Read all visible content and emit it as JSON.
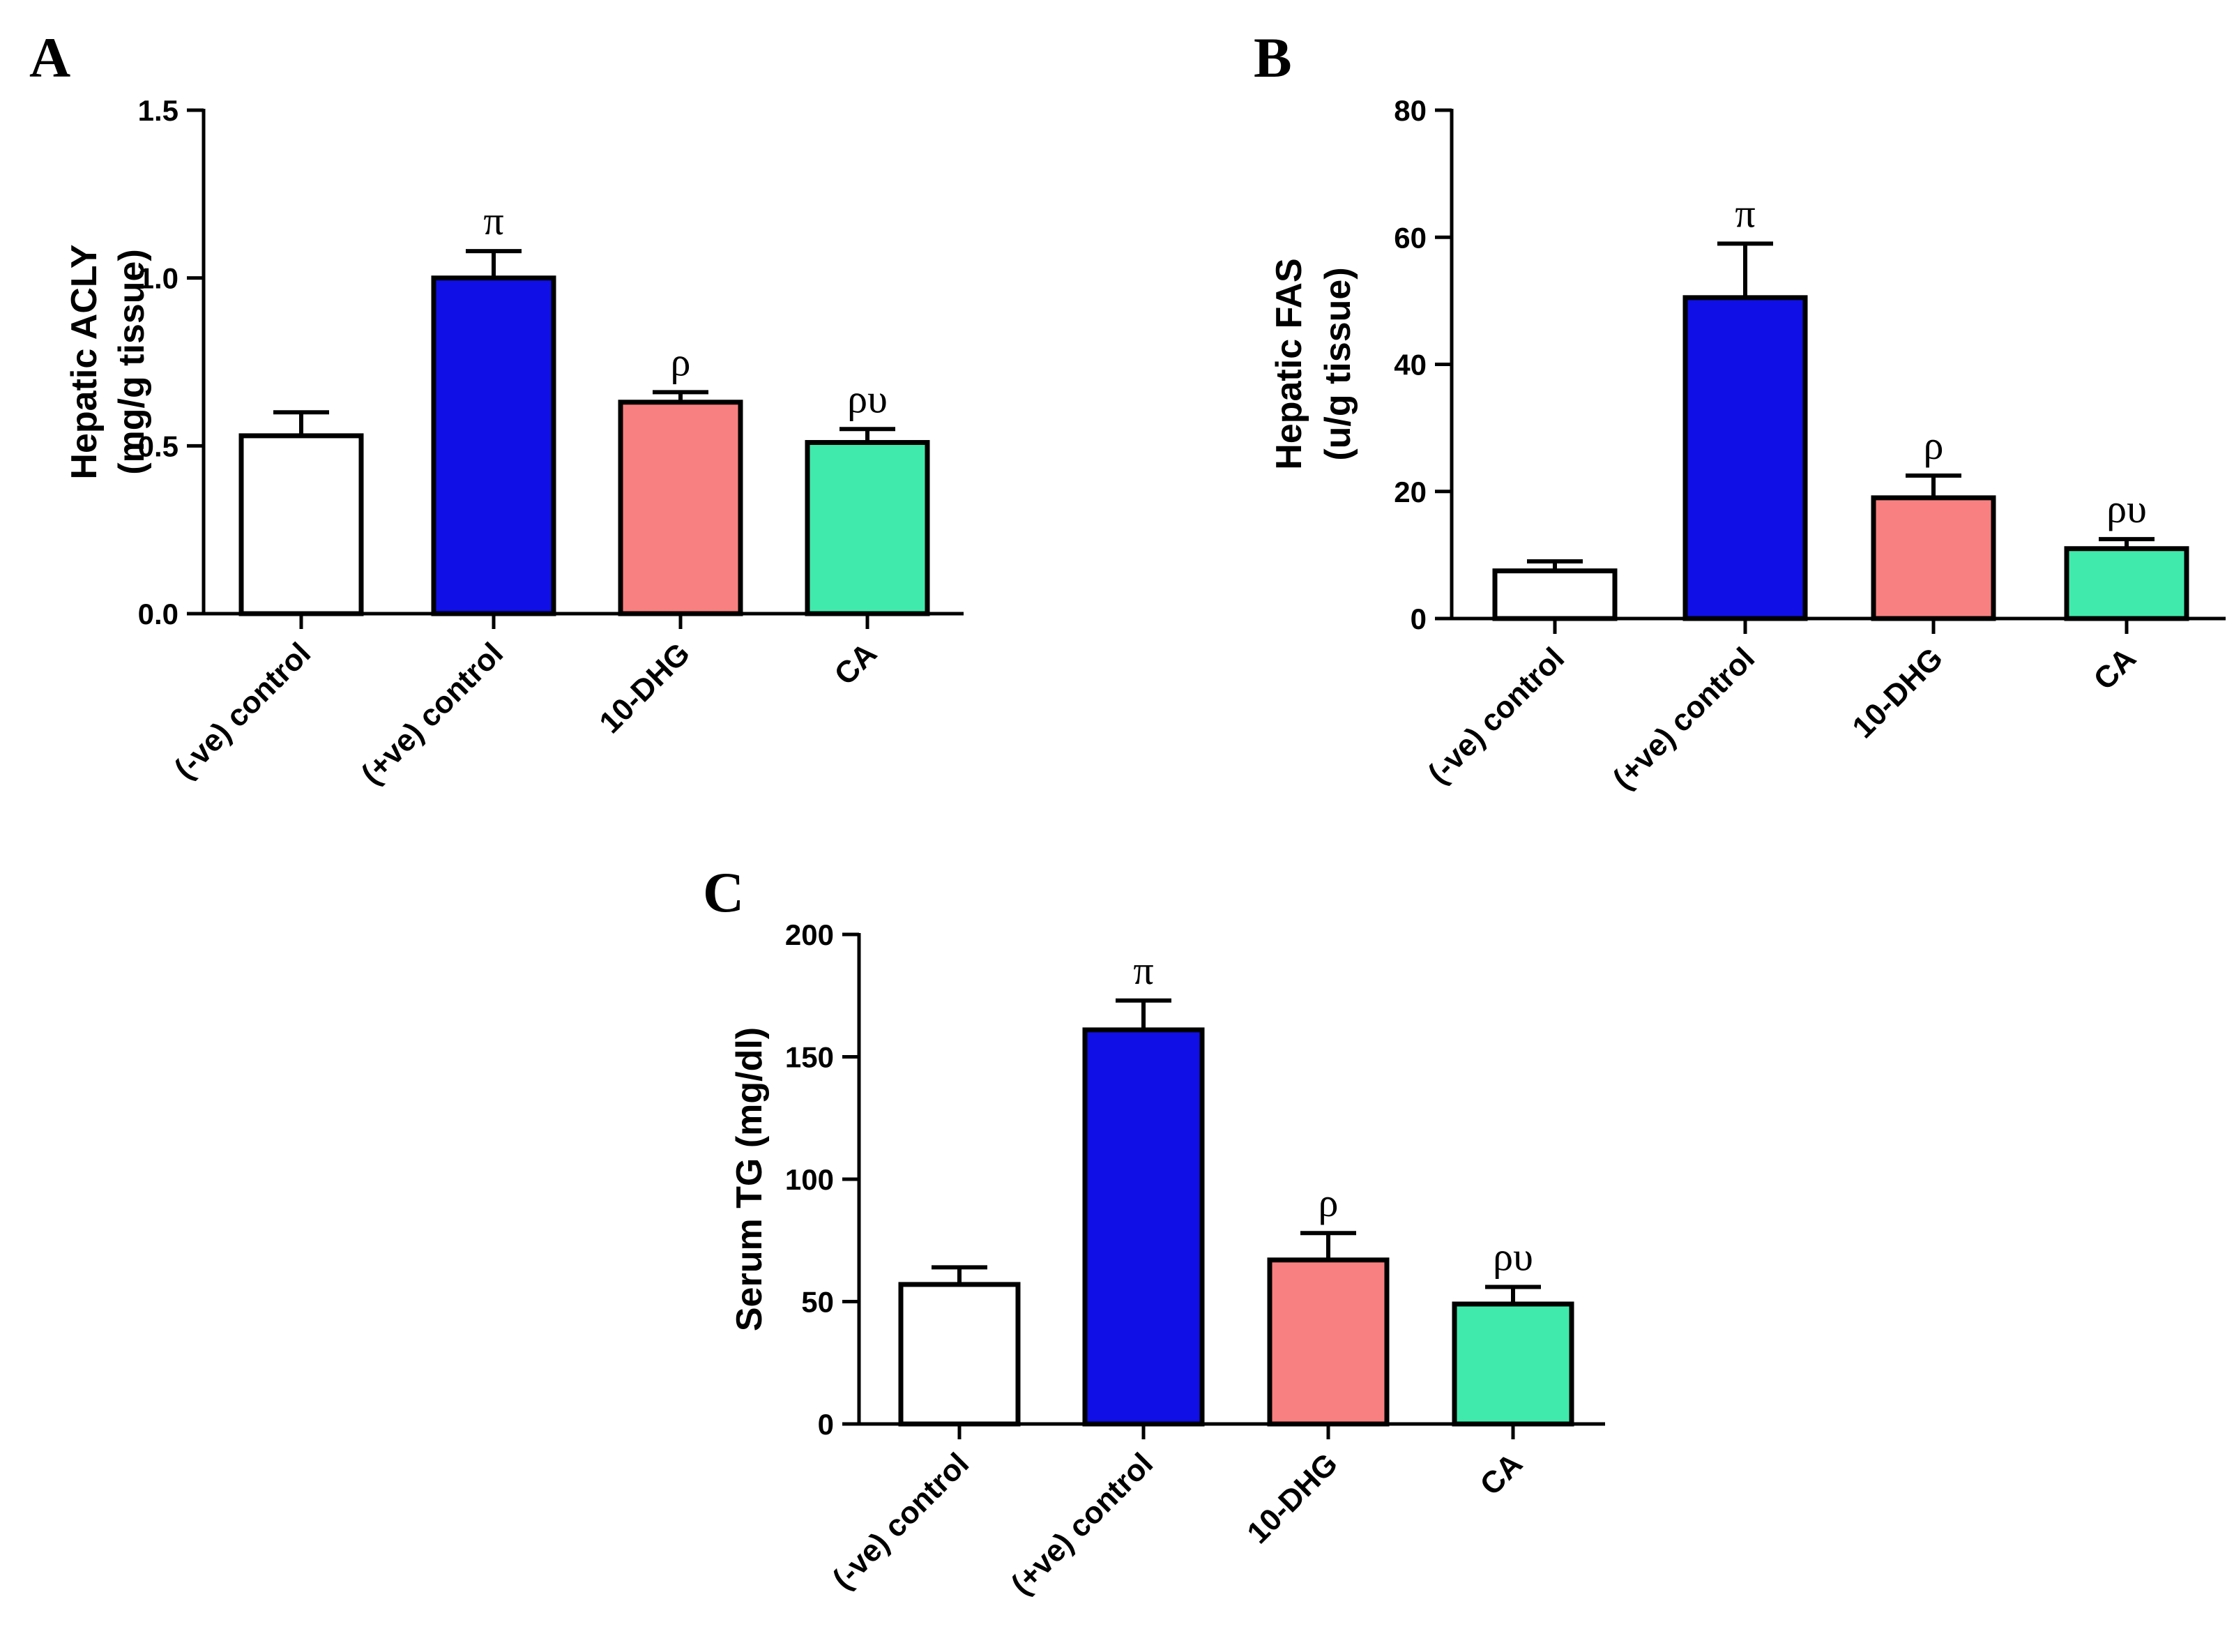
{
  "colors": {
    "neg_control": "#ffffff",
    "pos_control": "#1010e6",
    "dhg": "#f98080",
    "ca": "#40eaac",
    "axis": "#000000"
  },
  "chart_data": [
    {
      "panel": "A",
      "type": "bar",
      "categories": [
        "(-ve) control",
        "(+ve) control",
        "10-DHG",
        "CA"
      ],
      "values": [
        0.53,
        1.0,
        0.63,
        0.51
      ],
      "errors": [
        0.07,
        0.08,
        0.03,
        0.04
      ],
      "annotations": [
        "",
        "π",
        "ρ",
        "ρυ"
      ],
      "ylabel_lines": [
        "Hepatic ACLY",
        "(mg/g tissue)"
      ],
      "ylim": [
        0,
        1.5
      ],
      "yticks": [
        0.0,
        0.5,
        1.0,
        1.5
      ],
      "ytick_labels": [
        "0.0",
        "0.5",
        "1.0",
        "1.5"
      ]
    },
    {
      "panel": "B",
      "type": "bar",
      "categories": [
        "(-ve) control",
        "(+ve) control",
        "10-DHG",
        "CA"
      ],
      "values": [
        7.5,
        50.5,
        19,
        11
      ],
      "errors": [
        1.5,
        8.5,
        3.5,
        1.5
      ],
      "annotations": [
        "",
        "π",
        "ρ",
        "ρυ"
      ],
      "ylabel_lines": [
        "Hepatic FAS",
        "(u/g tissue)"
      ],
      "ylim": [
        0,
        80
      ],
      "yticks": [
        0,
        20,
        40,
        60,
        80
      ],
      "ytick_labels": [
        "0",
        "20",
        "40",
        "60",
        "80"
      ]
    },
    {
      "panel": "C",
      "type": "bar",
      "categories": [
        "(-ve) control",
        "(+ve) control",
        "10-DHG",
        "CA"
      ],
      "values": [
        57,
        161,
        67,
        49
      ],
      "errors": [
        7,
        12,
        11,
        7
      ],
      "annotations": [
        "",
        "π",
        "ρ",
        "ρυ"
      ],
      "ylabel_lines": [
        "Serum TG (mg/dl)"
      ],
      "ylim": [
        0,
        200
      ],
      "yticks": [
        0,
        50,
        100,
        150,
        200
      ],
      "ytick_labels": [
        "0",
        "50",
        "100",
        "150",
        "200"
      ]
    }
  ]
}
